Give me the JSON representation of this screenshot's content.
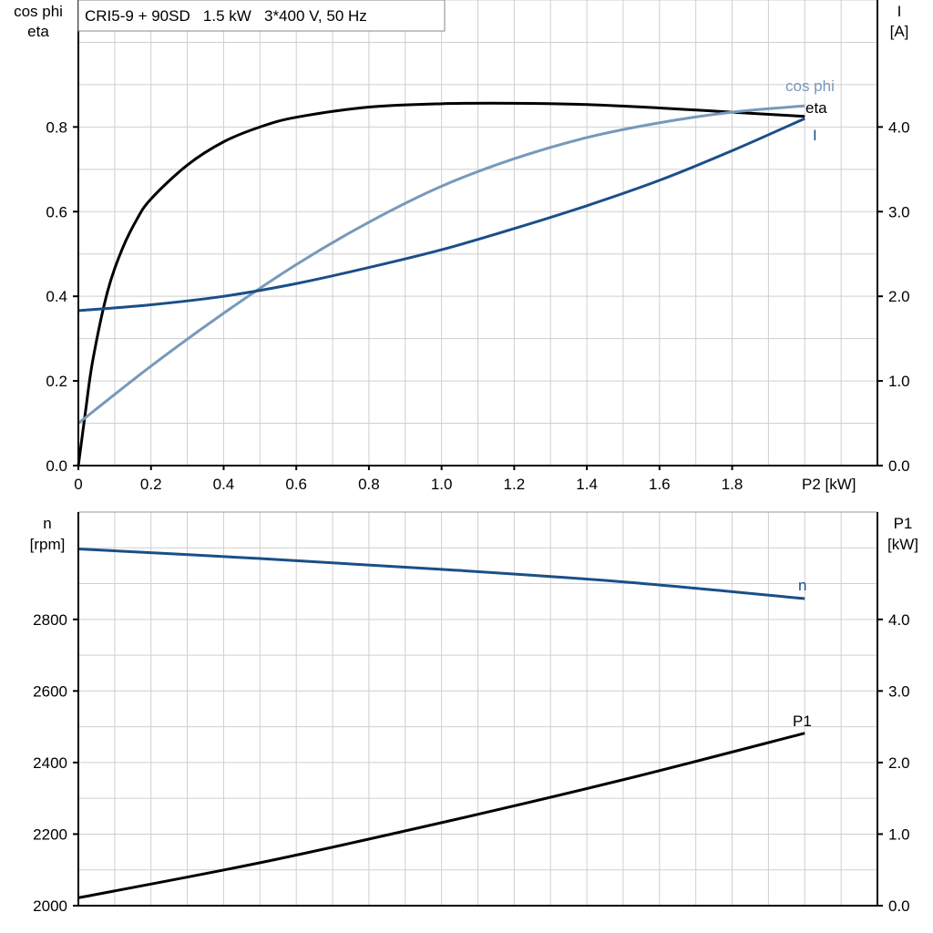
{
  "chart_data": [
    {
      "type": "line",
      "title": "CRI5-9 + 90SD   1.5 kW   3*400 V, 50 Hz",
      "xlabel": "P2 [kW]",
      "ylabel_left": [
        "cos phi",
        "eta"
      ],
      "ylabel_right": [
        "I",
        "[A]"
      ],
      "xlim": [
        0,
        2.2
      ],
      "ylim_left": [
        0,
        1.1
      ],
      "ylim_right": [
        0,
        5.5
      ],
      "x_ticks": [
        "0",
        "0.2",
        "0.4",
        "0.6",
        "0.8",
        "1.0",
        "1.2",
        "1.4",
        "1.6",
        "1.8"
      ],
      "y_ticks_left": [
        "0.0",
        "0.2",
        "0.4",
        "0.6",
        "0.8"
      ],
      "y_ticks_right": [
        "0.0",
        "1.0",
        "2.0",
        "3.0",
        "4.0"
      ],
      "grid": true,
      "series": [
        {
          "name": "eta",
          "axis": "left",
          "color": "#000000",
          "x": [
            0,
            0.02,
            0.04,
            0.08,
            0.12,
            0.16,
            0.2,
            0.3,
            0.4,
            0.5,
            0.6,
            0.8,
            1.0,
            1.2,
            1.4,
            1.6,
            1.8,
            2.0
          ],
          "y": [
            0,
            0.13,
            0.25,
            0.41,
            0.51,
            0.58,
            0.63,
            0.71,
            0.765,
            0.8,
            0.823,
            0.847,
            0.855,
            0.856,
            0.853,
            0.845,
            0.835,
            0.825
          ]
        },
        {
          "name": "cos phi",
          "axis": "left",
          "color": "#7799bb",
          "x": [
            0,
            0.2,
            0.4,
            0.6,
            0.8,
            1.0,
            1.2,
            1.4,
            1.6,
            1.8,
            2.0
          ],
          "y": [
            0.1,
            0.235,
            0.36,
            0.475,
            0.575,
            0.66,
            0.725,
            0.775,
            0.81,
            0.835,
            0.85
          ]
        },
        {
          "name": "I",
          "axis": "right",
          "color": "#1a4f88",
          "x": [
            0,
            0.2,
            0.4,
            0.6,
            0.8,
            1.0,
            1.2,
            1.4,
            1.6,
            1.8,
            2.0
          ],
          "y": [
            1.83,
            1.9,
            2.0,
            2.15,
            2.34,
            2.55,
            2.8,
            3.07,
            3.37,
            3.72,
            4.1
          ]
        }
      ]
    },
    {
      "type": "line",
      "ylabel_left": [
        "n",
        "[rpm]"
      ],
      "ylabel_right": [
        "P1",
        "[kW]"
      ],
      "xlim": [
        0,
        2.2
      ],
      "ylim_left": [
        2000,
        3100
      ],
      "ylim_right": [
        0,
        5.5
      ],
      "y_ticks_left": [
        "2000",
        "2200",
        "2400",
        "2600",
        "2800"
      ],
      "y_ticks_right": [
        "0.0",
        "1.0",
        "2.0",
        "3.0",
        "4.0"
      ],
      "grid": true,
      "series": [
        {
          "name": "n",
          "axis": "left",
          "color": "#1a4f88",
          "x": [
            0,
            0.5,
            1.0,
            1.5,
            2.0
          ],
          "y": [
            2997,
            2970,
            2940,
            2905,
            2858
          ]
        },
        {
          "name": "P1",
          "axis": "right",
          "color": "#000000",
          "x": [
            0,
            0.5,
            1.0,
            1.5,
            2.0
          ],
          "y": [
            0.11,
            0.6,
            1.16,
            1.76,
            2.41
          ]
        }
      ]
    }
  ]
}
